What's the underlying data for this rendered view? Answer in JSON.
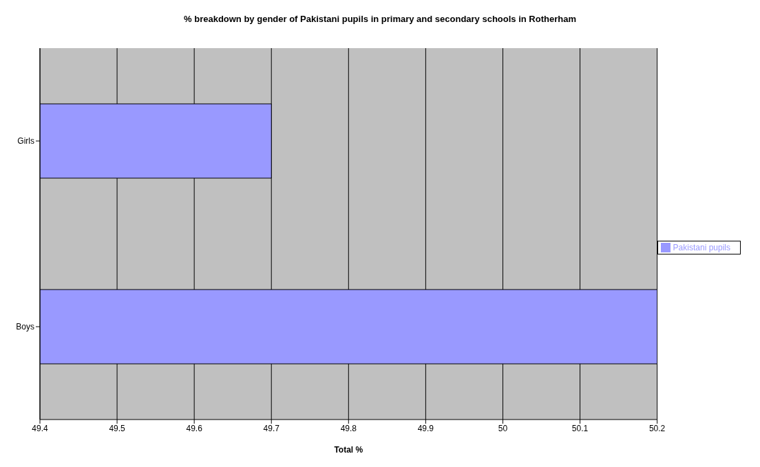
{
  "chart_data": {
    "type": "bar",
    "orientation": "horizontal",
    "title": "% breakdown by gender of Pakistani pupils in primary and secondary schools in Rotherham",
    "xlabel": "Total %",
    "categories": [
      "Girls",
      "Boys"
    ],
    "series": [
      {
        "name": "Pakistani pupils",
        "color": "#9999ff",
        "values": [
          49.7,
          50.2
        ]
      }
    ],
    "xlim": [
      49.4,
      50.2
    ],
    "xticks": [
      49.4,
      49.5,
      49.6,
      49.7,
      49.8,
      49.9,
      50,
      50.1,
      50.2
    ],
    "grid": "x",
    "legend": "right"
  }
}
